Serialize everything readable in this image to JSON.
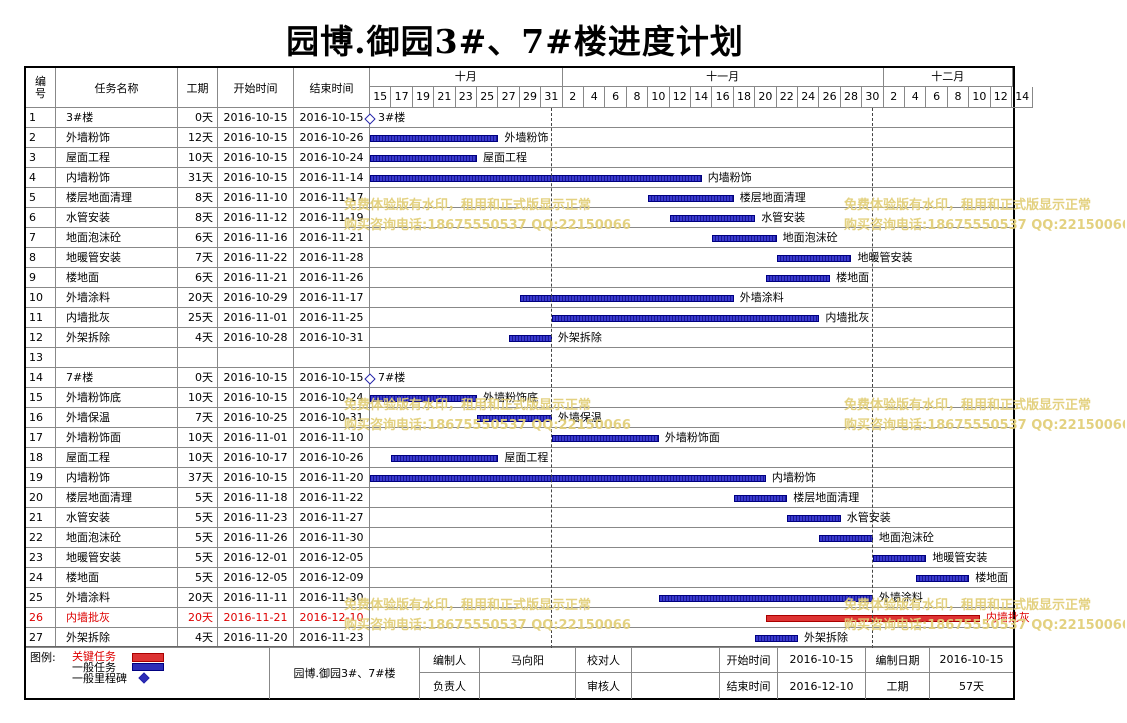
{
  "title": "园博.御园3#、7#楼进度计划",
  "headers": {
    "id": "编号",
    "name": "任务名称",
    "duration": "工期",
    "start": "开始时间",
    "end": "结束时间"
  },
  "timeline": {
    "months": [
      {
        "label": "十月",
        "days": [
          "15",
          "17",
          "19",
          "21",
          "23",
          "25",
          "27",
          "29",
          "31"
        ]
      },
      {
        "label": "十一月",
        "days": [
          "2",
          "4",
          "6",
          "8",
          "10",
          "12",
          "14",
          "16",
          "18",
          "20",
          "22",
          "24",
          "26",
          "28",
          "30"
        ]
      },
      {
        "label": "十二月",
        "days": [
          "2",
          "4",
          "6",
          "8",
          "10",
          "12",
          "14"
        ]
      }
    ],
    "start": "2016-10-15",
    "end": "2016-12-15"
  },
  "chart_data": {
    "type": "gantt",
    "title": "园博.御园3#、7#楼进度计划",
    "xlim": [
      "2016-10-15",
      "2016-12-15"
    ],
    "tasks": [
      {
        "id": "1",
        "name": "3#楼",
        "duration": "0天",
        "start": "2016-10-15",
        "end": "2016-10-15",
        "type": "milestone",
        "label": "3#楼"
      },
      {
        "id": "2",
        "name": "外墙粉饰",
        "duration": "12天",
        "start": "2016-10-15",
        "end": "2016-10-26",
        "type": "normal",
        "label": "外墙粉饰"
      },
      {
        "id": "3",
        "name": "屋面工程",
        "duration": "10天",
        "start": "2016-10-15",
        "end": "2016-10-24",
        "type": "normal",
        "label": "屋面工程"
      },
      {
        "id": "4",
        "name": "内墙粉饰",
        "duration": "31天",
        "start": "2016-10-15",
        "end": "2016-11-14",
        "type": "normal",
        "label": "内墙粉饰"
      },
      {
        "id": "5",
        "name": "楼层地面清理",
        "duration": "8天",
        "start": "2016-11-10",
        "end": "2016-11-17",
        "type": "normal",
        "label": "楼层地面清理"
      },
      {
        "id": "6",
        "name": "水管安装",
        "duration": "8天",
        "start": "2016-11-12",
        "end": "2016-11-19",
        "type": "normal",
        "label": "水管安装"
      },
      {
        "id": "7",
        "name": "地面泡沫砼",
        "duration": "6天",
        "start": "2016-11-16",
        "end": "2016-11-21",
        "type": "normal",
        "label": "地面泡沫砼"
      },
      {
        "id": "8",
        "name": "地暖管安装",
        "duration": "7天",
        "start": "2016-11-22",
        "end": "2016-11-28",
        "type": "normal",
        "label": "地暖管安装"
      },
      {
        "id": "9",
        "name": "楼地面",
        "duration": "6天",
        "start": "2016-11-21",
        "end": "2016-11-26",
        "type": "normal",
        "label": "楼地面"
      },
      {
        "id": "10",
        "name": "外墙涂料",
        "duration": "20天",
        "start": "2016-10-29",
        "end": "2016-11-17",
        "type": "normal",
        "label": "外墙涂料"
      },
      {
        "id": "11",
        "name": "内墙批灰",
        "duration": "25天",
        "start": "2016-11-01",
        "end": "2016-11-25",
        "type": "normal",
        "label": "内墙批灰"
      },
      {
        "id": "12",
        "name": "外架拆除",
        "duration": "4天",
        "start": "2016-10-28",
        "end": "2016-10-31",
        "type": "normal",
        "label": "外架拆除"
      },
      {
        "id": "13",
        "name": "",
        "duration": "",
        "start": "",
        "end": "",
        "type": "empty",
        "label": ""
      },
      {
        "id": "14",
        "name": "7#楼",
        "duration": "0天",
        "start": "2016-10-15",
        "end": "2016-10-15",
        "type": "milestone",
        "label": "7#楼"
      },
      {
        "id": "15",
        "name": "外墙粉饰底",
        "duration": "10天",
        "start": "2016-10-15",
        "end": "2016-10-24",
        "type": "normal",
        "label": "外墙粉饰底"
      },
      {
        "id": "16",
        "name": "外墙保温",
        "duration": "7天",
        "start": "2016-10-25",
        "end": "2016-10-31",
        "type": "normal",
        "label": "外墙保温"
      },
      {
        "id": "17",
        "name": "外墙粉饰面",
        "duration": "10天",
        "start": "2016-11-01",
        "end": "2016-11-10",
        "type": "normal",
        "label": "外墙粉饰面"
      },
      {
        "id": "18",
        "name": "屋面工程",
        "duration": "10天",
        "start": "2016-10-17",
        "end": "2016-10-26",
        "type": "normal",
        "label": "屋面工程"
      },
      {
        "id": "19",
        "name": "内墙粉饰",
        "duration": "37天",
        "start": "2016-10-15",
        "end": "2016-11-20",
        "type": "normal",
        "label": "内墙粉饰"
      },
      {
        "id": "20",
        "name": "楼层地面清理",
        "duration": "5天",
        "start": "2016-11-18",
        "end": "2016-11-22",
        "type": "normal",
        "label": "楼层地面清理"
      },
      {
        "id": "21",
        "name": "水管安装",
        "duration": "5天",
        "start": "2016-11-23",
        "end": "2016-11-27",
        "type": "normal",
        "label": "水管安装"
      },
      {
        "id": "22",
        "name": "地面泡沫砼",
        "duration": "5天",
        "start": "2016-11-26",
        "end": "2016-11-30",
        "type": "normal",
        "label": "地面泡沫砼"
      },
      {
        "id": "23",
        "name": "地暖管安装",
        "duration": "5天",
        "start": "2016-12-01",
        "end": "2016-12-05",
        "type": "normal",
        "label": "地暖管安装"
      },
      {
        "id": "24",
        "name": "楼地面",
        "duration": "5天",
        "start": "2016-12-05",
        "end": "2016-12-09",
        "type": "normal",
        "label": "楼地面"
      },
      {
        "id": "25",
        "name": "外墙涂料",
        "duration": "20天",
        "start": "2016-11-11",
        "end": "2016-11-30",
        "type": "normal",
        "label": "外墙涂料"
      },
      {
        "id": "26",
        "name": "内墙批灰",
        "duration": "20天",
        "start": "2016-11-21",
        "end": "2016-12-10",
        "type": "critical",
        "label": "内墙批灰"
      },
      {
        "id": "27",
        "name": "外架拆除",
        "duration": "4天",
        "start": "2016-11-20",
        "end": "2016-11-23",
        "type": "normal",
        "label": "外架拆除"
      }
    ]
  },
  "watermark": {
    "line1": "免费体验版有水印，租用和正式版显示正常",
    "line2": "购买咨询电话:18675550537 QQ:22150066"
  },
  "legend": {
    "label": "图例:",
    "critical": "关键任务",
    "normal": "一般任务",
    "milestone": "一般里程碑"
  },
  "footer": {
    "project": "园博.御园3#、7#楼",
    "editor_label": "编制人",
    "editor": "马向阳",
    "checker_label": "校对人",
    "checker": "",
    "owner_label": "负责人",
    "owner": "",
    "reviewer_label": "审核人",
    "reviewer": "",
    "start_label": "开始时间",
    "start": "2016-10-15",
    "end_label": "结束时间",
    "end": "2016-12-10",
    "date_label": "编制日期",
    "date": "2016-10-15",
    "duration_label": "工期",
    "duration": "57天"
  },
  "colors": {
    "normal_bar": "#2d2db8",
    "critical_bar": "#dd3333",
    "critical_text": "#dd0000",
    "watermark": "#e2cf7a"
  }
}
